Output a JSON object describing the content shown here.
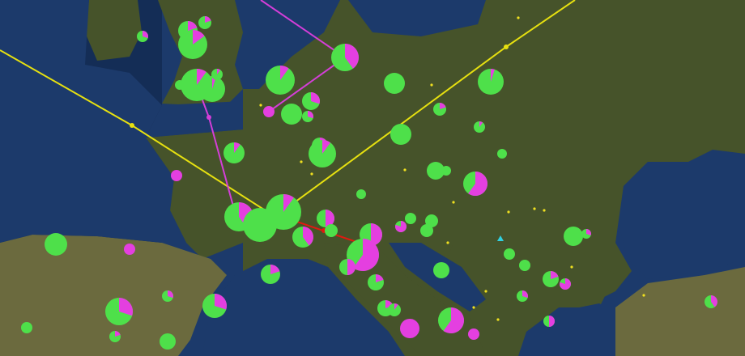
{
  "map": {
    "region": "Europe",
    "basemap": "satellite",
    "colors": {
      "sea": "#1c3a6b",
      "deep_sea": "#0f2448",
      "land": "#46532a",
      "land_light": "#6b6a3e",
      "pie_primary": "#4ee04a",
      "pie_secondary": "#e43fe0",
      "route_yellow": "#e6e010",
      "route_magenta": "#d43ed8",
      "route_red": "#e01a10",
      "point": "#f0e020",
      "triangle": "#30d0e0"
    },
    "markers_secondary_fraction": [
      0.3,
      0.2,
      0.2,
      0.15,
      0.1,
      0.05,
      0.1,
      0,
      0.4,
      0.1,
      1,
      0,
      0.3,
      0.3,
      0,
      0.05,
      0.2,
      0.1,
      0,
      0.1,
      0.2,
      0.1,
      1,
      0,
      0,
      0,
      0.6,
      0,
      0.4,
      0,
      0.1,
      0.5,
      0,
      0.4,
      0.5,
      0.6,
      0.5,
      0.8,
      0,
      0,
      0,
      0,
      1,
      0,
      0,
      0,
      0.3,
      0.2,
      0.8,
      0,
      0.2,
      0.2,
      0.3,
      0.3,
      0.3,
      0.3,
      0.2,
      0.1,
      0.6,
      1,
      1,
      0,
      0.2,
      0,
      0.5,
      0.4
    ]
  }
}
